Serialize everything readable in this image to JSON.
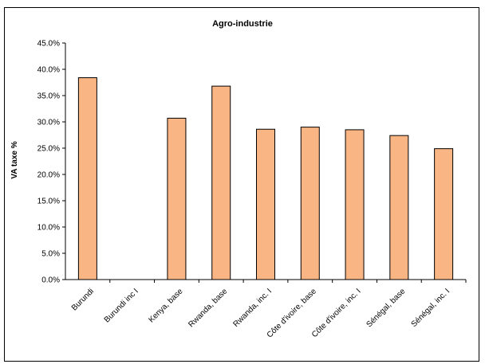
{
  "chart_data": {
    "type": "bar",
    "title": "Agro-industrie",
    "xlabel": "",
    "ylabel": "VA taxe %",
    "ylim": [
      0,
      45
    ],
    "ytick_step": 5,
    "ytick_labels": [
      "0.0%",
      "5.0%",
      "10.0%",
      "15.0%",
      "20.0%",
      "25.0%",
      "30.0%",
      "35.0%",
      "40.0%",
      "45.0%"
    ],
    "grid": false,
    "legend": "none",
    "categories": [
      "Burundi",
      "Burundi inc I",
      "Kenya, base",
      "Rwanda, base",
      "Rwanda, inc. I",
      "Côte d'ivoire, base",
      "Côte d'ivoire, inc. I",
      "Sénégal, base",
      "Sénégal, inc. I"
    ],
    "values": [
      38.4,
      0,
      30.7,
      36.8,
      28.6,
      29.0,
      28.5,
      27.4,
      24.9
    ],
    "bar_color": "#FAB584",
    "bar_edge_color": "#000000"
  }
}
